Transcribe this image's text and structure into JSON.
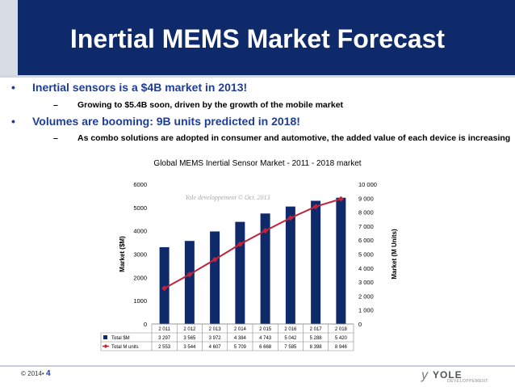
{
  "header": {
    "title": "Inertial MEMS Market Forecast"
  },
  "bullets": [
    {
      "marker": "•",
      "text": "Inertial sensors is a $4B market in 2013!",
      "sub": {
        "marker": "–",
        "text": "Growing to $5.4B soon, driven by the growth of the mobile market"
      }
    },
    {
      "marker": "•",
      "text": "Volumes are booming: 9B units predicted in 2018!",
      "sub": {
        "marker": "–",
        "text": "As combo solutions are adopted in consumer and automotive, the added value of each device is increasing"
      }
    }
  ],
  "chart_data": {
    "type": "bar",
    "title": "Global MEMS Inertial Sensor Market - 2011 - 2018 market",
    "watermark": "Yole developpement © Oct. 2013",
    "categories": [
      "2 011",
      "2 012",
      "2 013",
      "2 014",
      "2 015",
      "2 016",
      "2 017",
      "2 018"
    ],
    "ylabel": "Market ($M)",
    "y2label": "Market (M Units)",
    "ylim": [
      0,
      6000
    ],
    "y2lim": [
      0,
      10000
    ],
    "yticks": [
      "0",
      "1000",
      "2000",
      "3000",
      "4000",
      "5000",
      "6000"
    ],
    "y2ticks": [
      "0",
      "1 000",
      "2 000",
      "3 000",
      "4 000",
      "5 000",
      "6 000",
      "7 000",
      "8 000",
      "9 000",
      "10 000"
    ],
    "grid": false,
    "legend_placement": "data table below chart",
    "series": [
      {
        "name": "Total $M",
        "type": "bar",
        "axis": "left",
        "color": "#0f2a6b",
        "values": [
          3297,
          3565,
          3972,
          4384,
          4743,
          5042,
          5288,
          5420
        ],
        "labels": [
          "3 297",
          "3 565",
          "3 972",
          "4 384",
          "4 743",
          "5 042",
          "5 288",
          "5 420"
        ]
      },
      {
        "name": "Total M units",
        "type": "line",
        "axis": "right",
        "color": "#c0233a",
        "values": [
          2553,
          3544,
          4607,
          5709,
          6668,
          7585,
          8398,
          8946
        ],
        "labels": [
          "2 553",
          "3 544",
          "4 607",
          "5 709",
          "6 668",
          "7 585",
          "8 398",
          "8 946"
        ]
      }
    ]
  },
  "footer": {
    "copyright": "© 2014•",
    "page": "4"
  },
  "logo": {
    "text": "YOLE",
    "subtext": "DEVELOPPEMENT"
  },
  "colors": {
    "title_bg": "#0f2a6b",
    "bullet_text": "#1f3d99",
    "bar": "#0f2a6b",
    "line": "#c0233a"
  }
}
